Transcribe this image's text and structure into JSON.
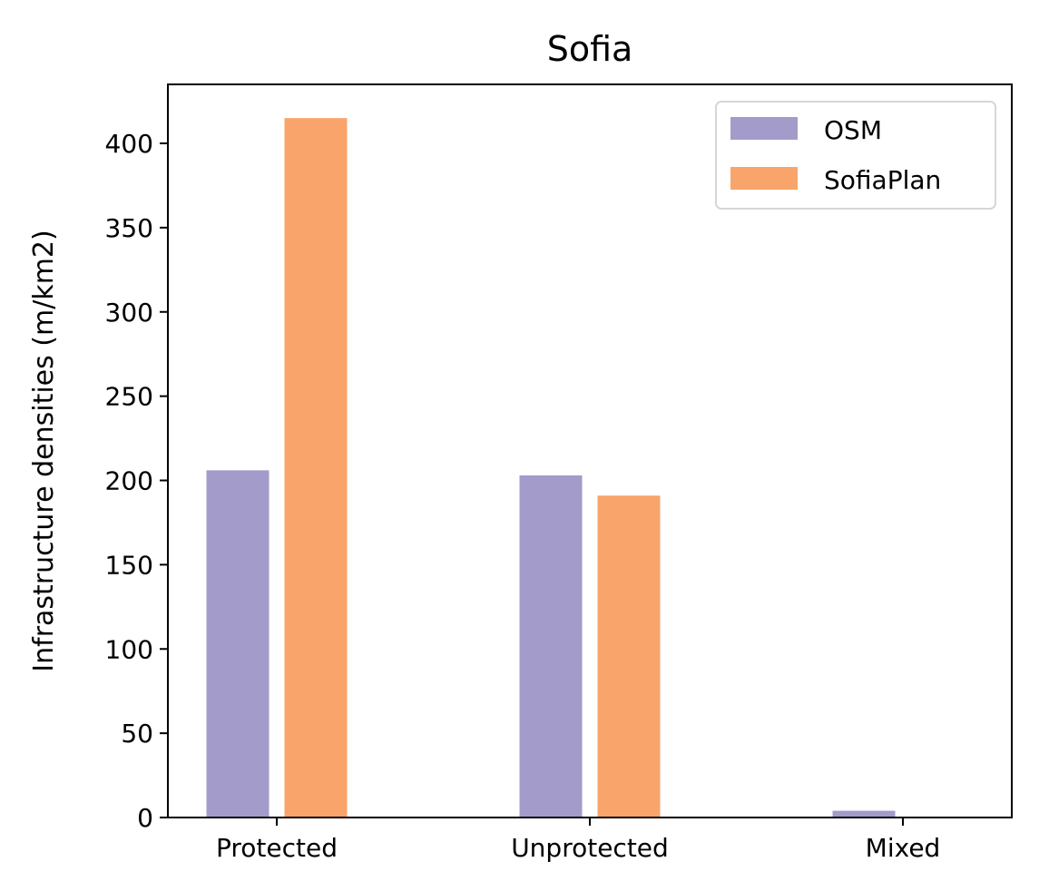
{
  "chart_data": {
    "type": "bar",
    "title": "Sofia",
    "xlabel": "",
    "ylabel": "Infrastructure densities (m/km2)",
    "categories": [
      "Protected",
      "Unprotected",
      "Mixed"
    ],
    "series": [
      {
        "name": "OSM",
        "color": "#a39bc9",
        "values": [
          206,
          203,
          4
        ]
      },
      {
        "name": "SofiaPlan",
        "color": "#f9a46a",
        "values": [
          415,
          191,
          0
        ]
      }
    ],
    "ylim": [
      0,
      435
    ],
    "yticks": [
      0,
      50,
      100,
      150,
      200,
      250,
      300,
      350,
      400
    ],
    "grid": false,
    "legend_position": "top-right"
  }
}
